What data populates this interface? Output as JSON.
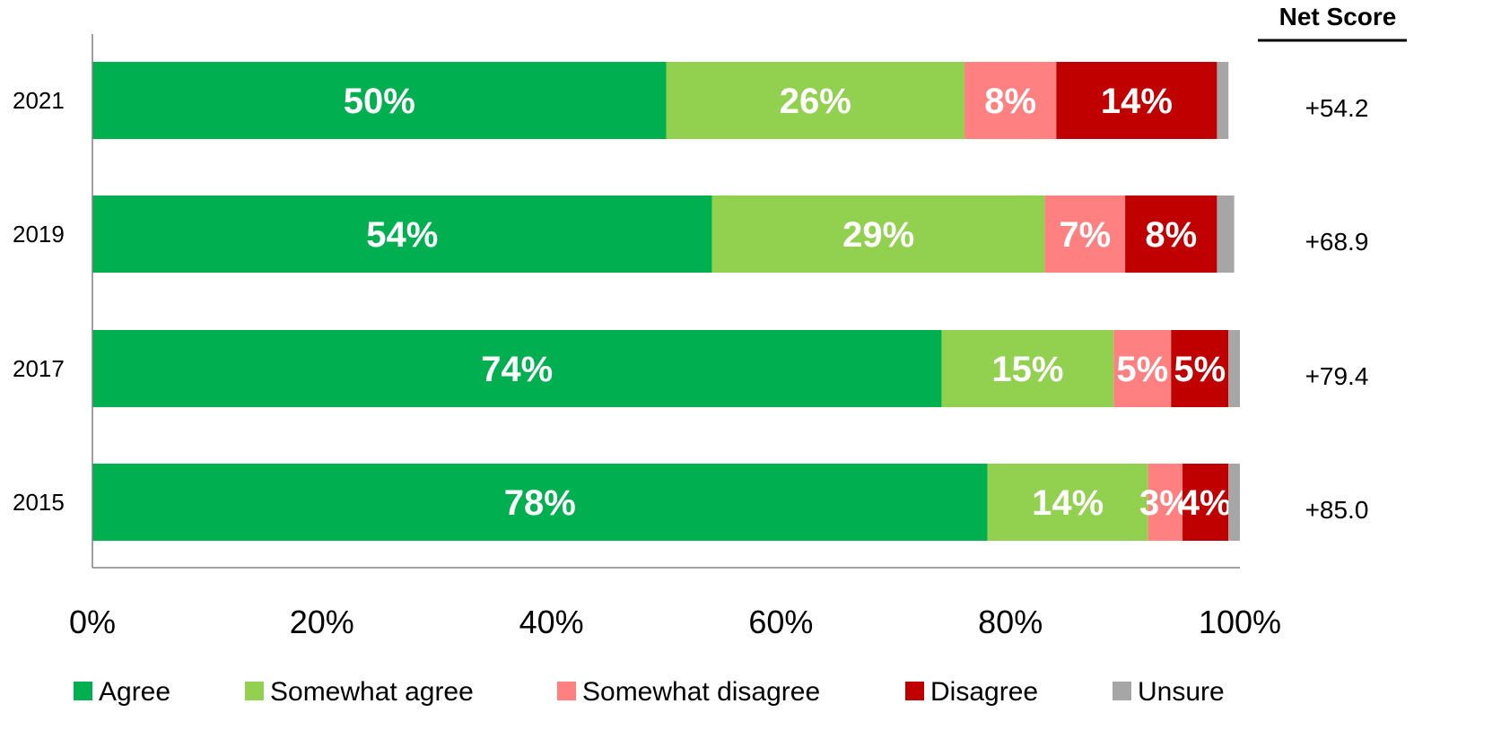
{
  "chart_data": {
    "type": "bar",
    "orientation": "horizontal",
    "stacked": true,
    "percent": true,
    "categories": [
      "2021",
      "2019",
      "2017",
      "2015"
    ],
    "series": [
      {
        "name": "Agree",
        "color": "#00b050",
        "values": [
          50,
          54,
          74,
          78
        ],
        "labels": [
          "50%",
          "54%",
          "74%",
          "78%"
        ]
      },
      {
        "name": "Somewhat agree",
        "color": "#92d050",
        "values": [
          26,
          29,
          15,
          14
        ],
        "labels": [
          "26%",
          "29%",
          "15%",
          "14%"
        ]
      },
      {
        "name": "Somewhat disagree",
        "color": "#ff8080",
        "values": [
          8,
          7,
          5,
          3
        ],
        "labels": [
          "8%",
          "7%",
          "5%",
          "3%"
        ]
      },
      {
        "name": "Disagree",
        "color": "#c00000",
        "values": [
          14,
          8,
          5,
          4
        ],
        "labels": [
          "14%",
          "8%",
          "5%",
          "4%"
        ]
      },
      {
        "name": "Unsure",
        "color": "#a6a6a6",
        "values": [
          1,
          1.5,
          1.5,
          1
        ],
        "labels": [
          "",
          "",
          "",
          ""
        ]
      }
    ],
    "xlim": [
      0,
      100
    ],
    "xticks": [
      "0%",
      "20%",
      "40%",
      "60%",
      "80%",
      "100%"
    ],
    "legend_position": "bottom",
    "net_score": {
      "header": "Net Score",
      "values": [
        "+54.2",
        "+68.9",
        "+79.4",
        "+85.0"
      ]
    }
  }
}
